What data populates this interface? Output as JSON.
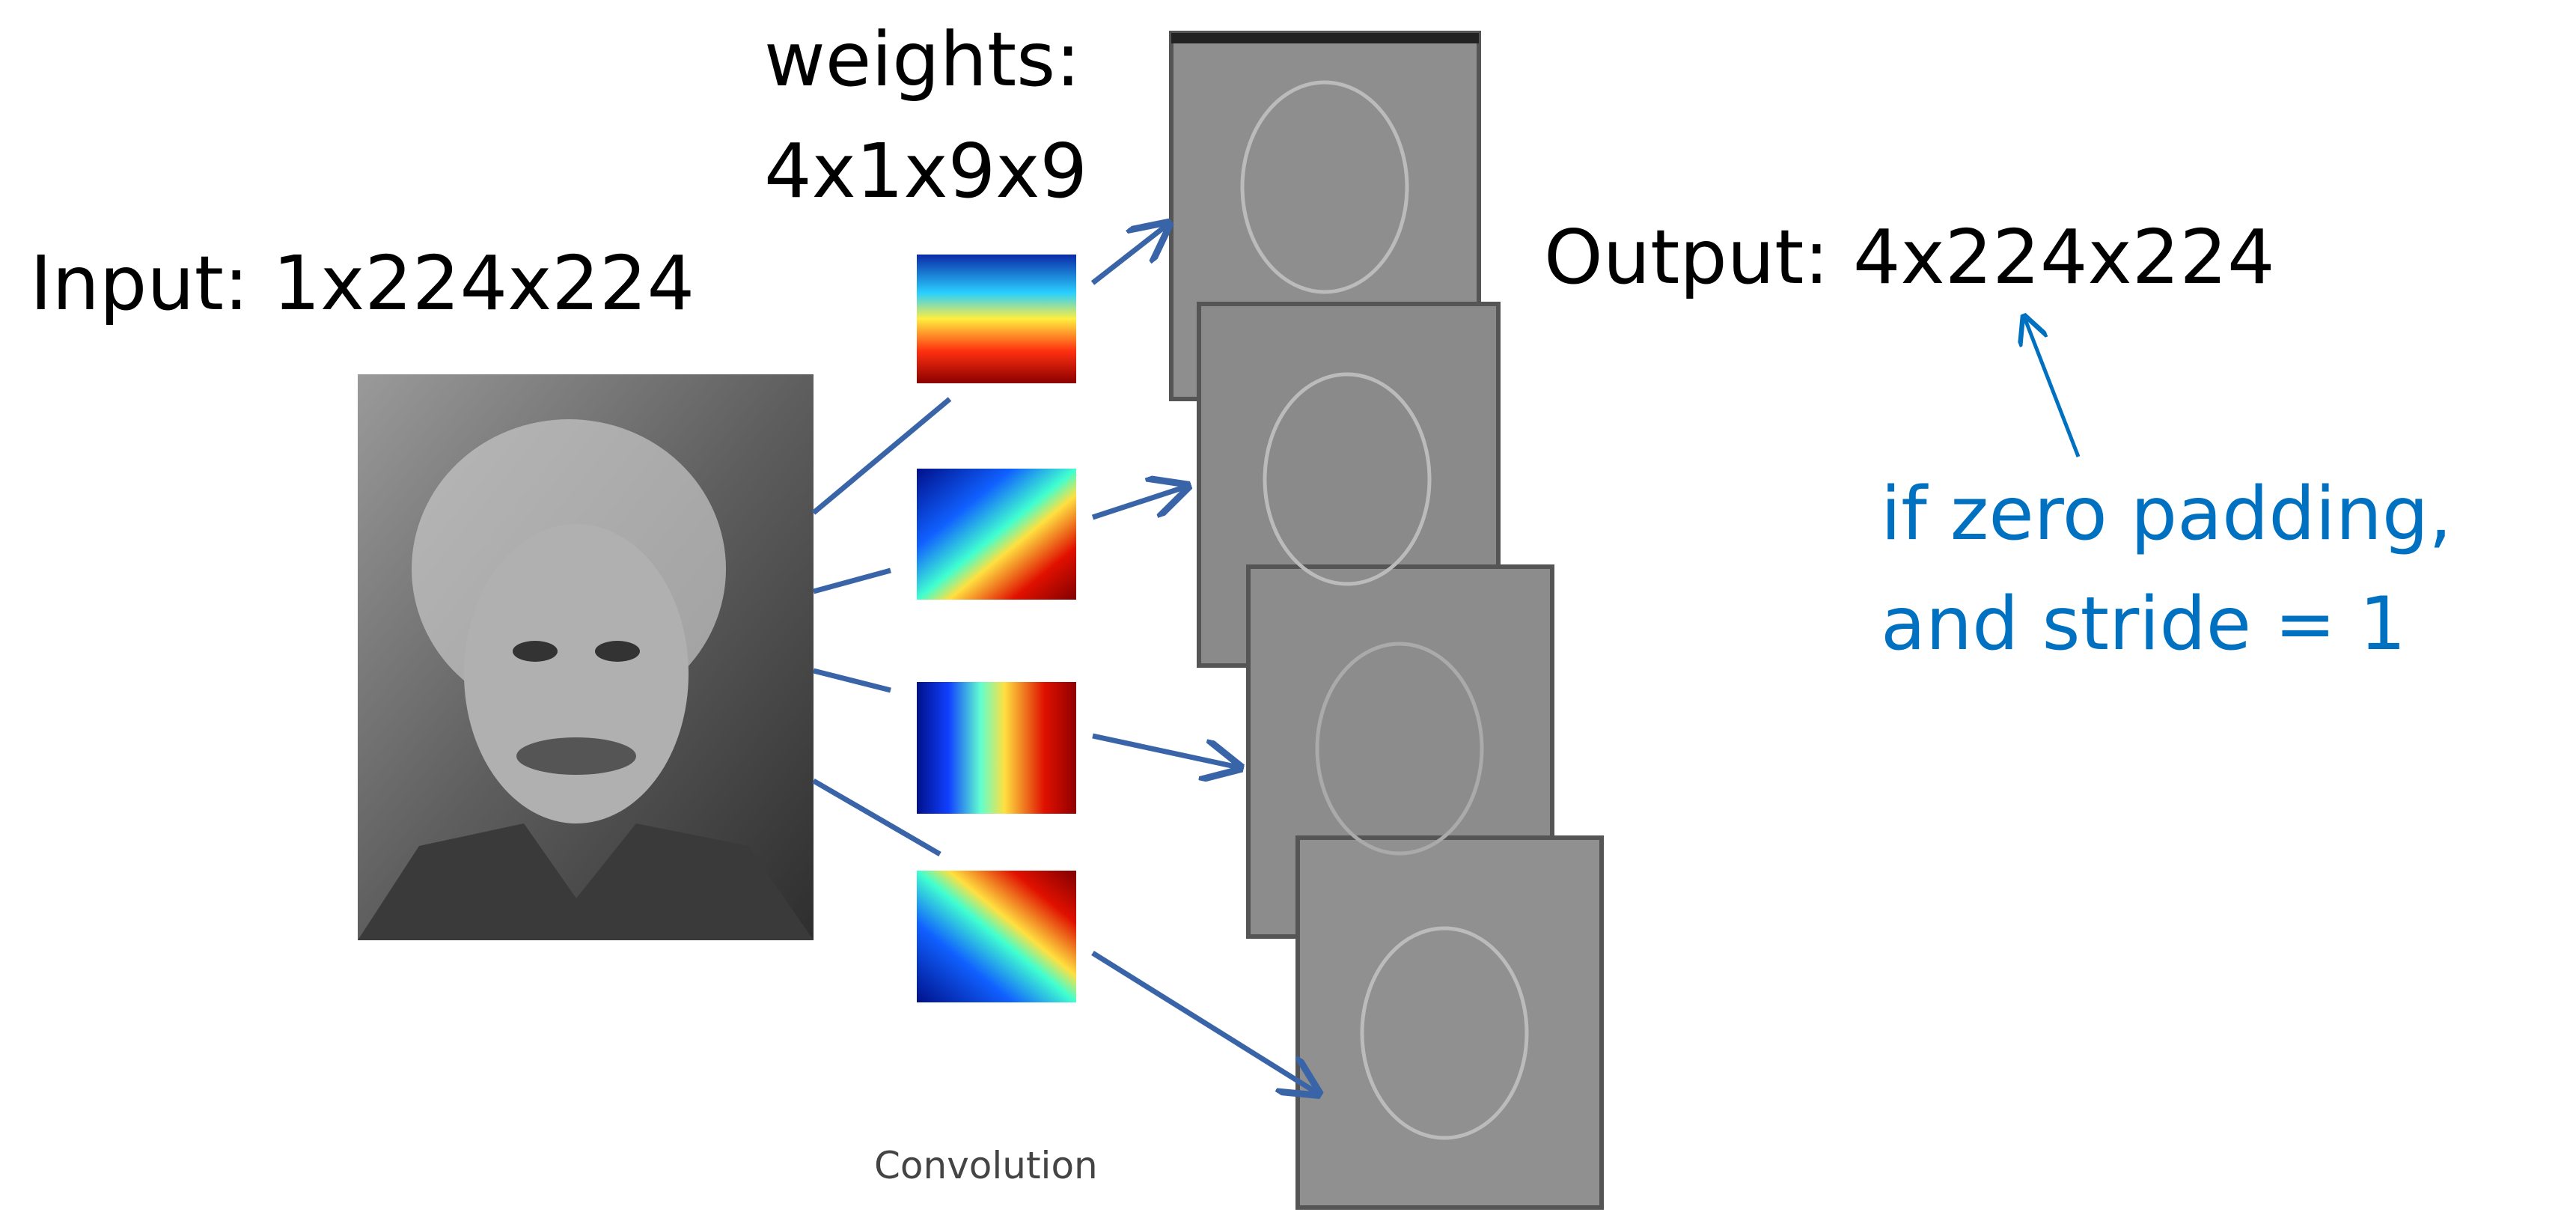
{
  "weights_label": {
    "line1": "weights:",
    "line2": "4x1x9x9"
  },
  "input_label": "Input: 1x224x224",
  "output_label": "Output: 4x224x224",
  "note": {
    "line1": "if zero padding,",
    "line2": "and stride = 1"
  },
  "caption": "Convolution"
}
